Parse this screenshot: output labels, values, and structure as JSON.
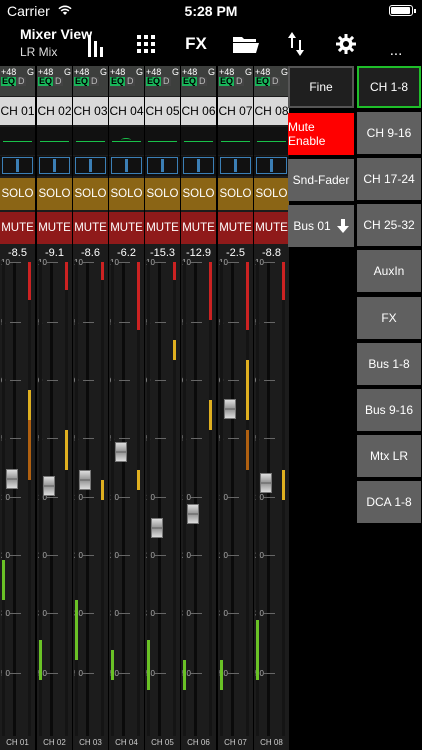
{
  "status_bar": {
    "carrier": "Carrier",
    "time": "5:28 PM"
  },
  "toolbar": {
    "title": "Mixer View",
    "subtitle": "LR Mix",
    "fx_label": "FX",
    "more_label": "...",
    "icons": [
      "fader-view-icon",
      "grid-icon",
      "fx-icon",
      "folder-icon",
      "swap-icon",
      "gear-icon",
      "more-icon"
    ]
  },
  "channel_strip_labels": {
    "eq_top": "+48",
    "g": "G",
    "eq": "EQ",
    "d": "D",
    "solo": "SOLO",
    "mute": "MUTE"
  },
  "fader_scale": [
    "10",
    "5",
    "0",
    "5",
    "10",
    "20",
    "30",
    "50"
  ],
  "fader_scale_db": [
    10,
    5,
    0,
    -5,
    -10,
    -20,
    -30,
    -50
  ],
  "channels": [
    {
      "name": "CH 01",
      "footer": "CH 01",
      "level": "-8.5",
      "fader_db": -8.5
    },
    {
      "name": "CH 02",
      "footer": "CH 02",
      "level": "-9.1",
      "fader_db": -9.1
    },
    {
      "name": "CH 03",
      "footer": "CH 03",
      "level": "-8.6",
      "fader_db": -8.6
    },
    {
      "name": "CH 04",
      "footer": "CH 04",
      "level": "-6.2",
      "fader_db": -6.2
    },
    {
      "name": "CH 05",
      "footer": "CH 05",
      "level": "-15.3",
      "fader_db": -15.3
    },
    {
      "name": "CH 06",
      "footer": "CH 06",
      "level": "-12.9",
      "fader_db": -12.9
    },
    {
      "name": "CH 07",
      "footer": "CH 07",
      "level": "-2.5",
      "fader_db": -2.5
    },
    {
      "name": "CH 08",
      "footer": "CH 08",
      "level": "-8.8",
      "fader_db": -8.8
    }
  ],
  "controls": {
    "fine": "Fine",
    "mute_enable": "Mute Enable",
    "snd_fader": "Snd-Fader",
    "bus_select": "Bus 01"
  },
  "banks": [
    {
      "label": "CH 1-8",
      "selected": true
    },
    {
      "label": "CH 9-16",
      "selected": false
    },
    {
      "label": "CH 17-24",
      "selected": false
    },
    {
      "label": "CH 25-32",
      "selected": false
    },
    {
      "label": "AuxIn",
      "selected": false
    },
    {
      "label": "FX",
      "selected": false
    },
    {
      "label": "Bus 1-8",
      "selected": false
    },
    {
      "label": "Bus 9-16",
      "selected": false
    },
    {
      "label": "Mtx LR",
      "selected": false
    },
    {
      "label": "DCA 1-8",
      "selected": false
    }
  ],
  "colors": {
    "solo": "#8b6515",
    "mute": "#8f1a1a",
    "mute_enable": "#ff0000",
    "selected_bank": "#1fbf2a",
    "eq_on": "#19b65a"
  }
}
